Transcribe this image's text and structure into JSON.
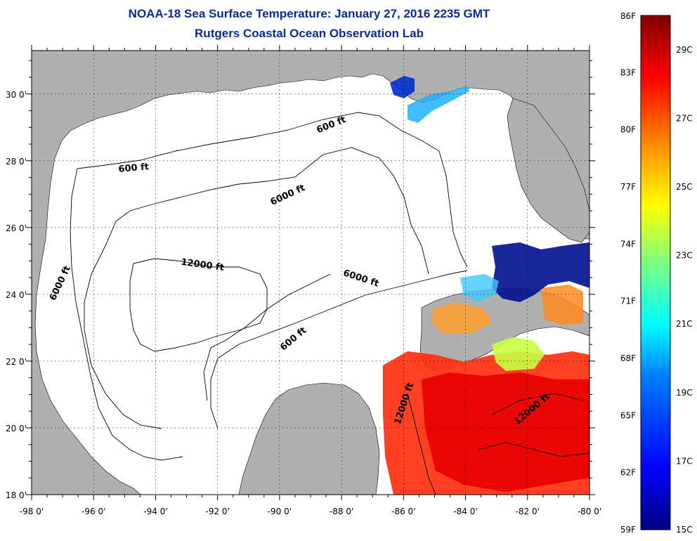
{
  "title_line1": "NOAA-18 Sea Surface Temperature:  January 27, 2016 2235 GMT",
  "title_line2": "Rutgers Coastal Ocean Observation Lab",
  "map": {
    "lon_range": [
      -98,
      -80
    ],
    "lat_range": [
      18,
      31.3
    ],
    "lon_ticks": [
      "-98 0'",
      "-96 0'",
      "-94 0'",
      "-92 0'",
      "-90 0'",
      "-88 0'",
      "-86 0'",
      "-84 0'",
      "-82 0'",
      "-80 0'"
    ],
    "lat_ticks": [
      "18 0'",
      "20 0'",
      "22 0'",
      "24 0'",
      "26 0'",
      "28 0'",
      "30 0'"
    ],
    "grid": "dotted",
    "land_color": "#b0b0b0",
    "water_color": "#ffffff",
    "contour_labels": [
      {
        "text": "600 ft",
        "lon": -88.3,
        "lat": 29.0,
        "rot": -22
      },
      {
        "text": "600 ft",
        "lon": -94.7,
        "lat": 27.7,
        "rot": -5
      },
      {
        "text": "6000 ft",
        "lon": -89.7,
        "lat": 26.9,
        "rot": -25
      },
      {
        "text": "12000 ft",
        "lon": -92.5,
        "lat": 24.8,
        "rot": 8
      },
      {
        "text": "6000 ft",
        "lon": -97.0,
        "lat": 24.3,
        "rot": -65
      },
      {
        "text": "6000 ft",
        "lon": -87.4,
        "lat": 24.4,
        "rot": 18
      },
      {
        "text": "600 ft",
        "lon": -89.5,
        "lat": 22.6,
        "rot": -40
      },
      {
        "text": "12000 ft",
        "lon": -85.9,
        "lat": 20.7,
        "rot": -72
      },
      {
        "text": "12000 ft",
        "lon": -81.8,
        "lat": 20.5,
        "rot": -40
      }
    ]
  },
  "colorbar": {
    "f_labels": [
      "86F",
      "83F",
      "80F",
      "77F",
      "74F",
      "71F",
      "68F",
      "65F",
      "62F",
      "59F"
    ],
    "c_labels": [
      "29C",
      "27C",
      "25C",
      "23C",
      "21C",
      "19C",
      "17C",
      "15C"
    ],
    "f_range": [
      59,
      86
    ],
    "colors": [
      "#00007f",
      "#0000ff",
      "#007fff",
      "#00ffff",
      "#7fff7f",
      "#ffff00",
      "#ff7f00",
      "#ff0000",
      "#7f0000"
    ]
  }
}
